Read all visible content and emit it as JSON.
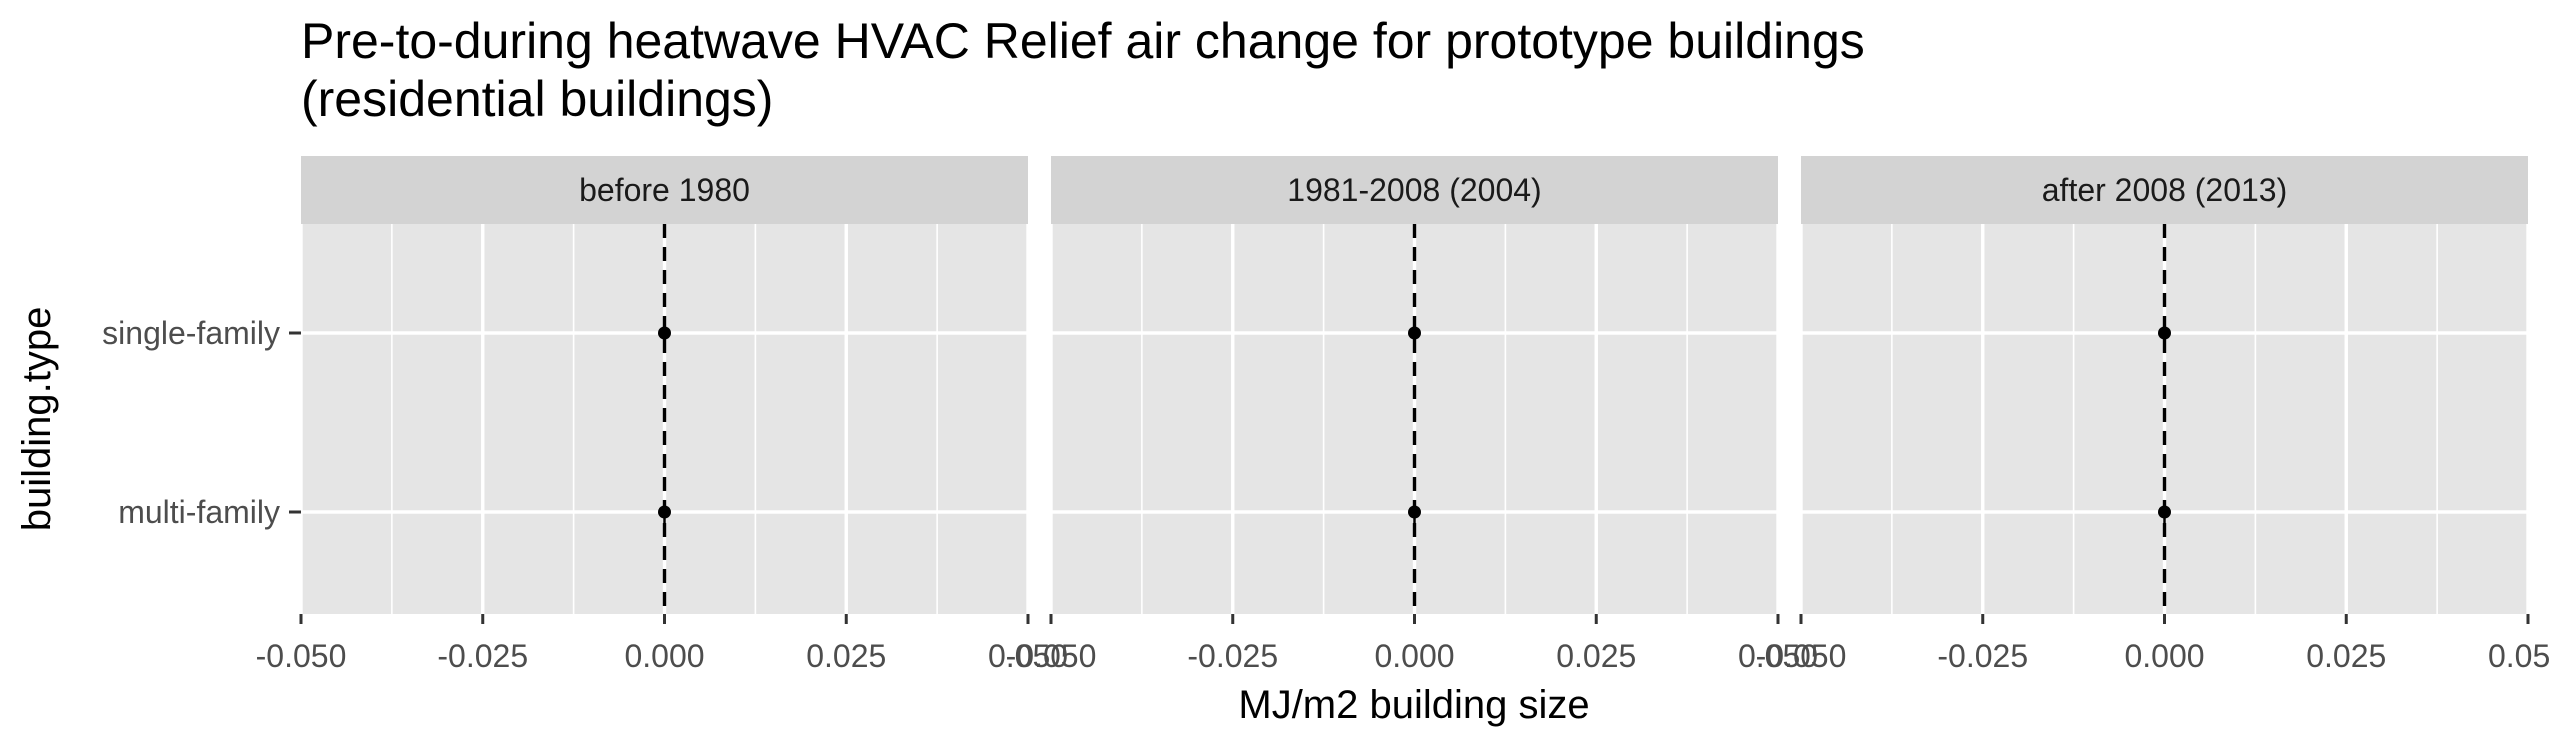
{
  "chart_data": {
    "type": "scatter",
    "title_line1": "Pre-to-during heatwave HVAC Relief air change for prototype buildings",
    "title_line2": "(residential buildings)",
    "xlabel": "MJ/m2 building size",
    "ylabel": "building.type",
    "xlim": [
      -0.05,
      0.05
    ],
    "x_ticks": [
      -0.05,
      -0.025,
      0.0,
      0.025,
      0.05
    ],
    "x_tick_labels": [
      "-0.050",
      "-0.025",
      "0.000",
      "0.025",
      "0.050"
    ],
    "categories": [
      "single-family",
      "multi-family"
    ],
    "reference_line": {
      "x": 0,
      "style": "dashed"
    },
    "grid": true,
    "panels": [
      {
        "label": "before 1980",
        "points": [
          {
            "category": "single-family",
            "x": 0
          },
          {
            "category": "multi-family",
            "x": 0
          }
        ]
      },
      {
        "label": "1981-2008 (2004)",
        "points": [
          {
            "category": "single-family",
            "x": 0
          },
          {
            "category": "multi-family",
            "x": 0
          }
        ]
      },
      {
        "label": "after 2008 (2013)",
        "points": [
          {
            "category": "single-family",
            "x": 0
          },
          {
            "category": "multi-family",
            "x": 0
          }
        ]
      }
    ],
    "colors": {
      "panel_bg": "#E5E5E5",
      "strip_bg": "#D3D3D3",
      "grid": "#FFFFFF",
      "point": "#000000",
      "text": "#4D4D4D"
    }
  }
}
